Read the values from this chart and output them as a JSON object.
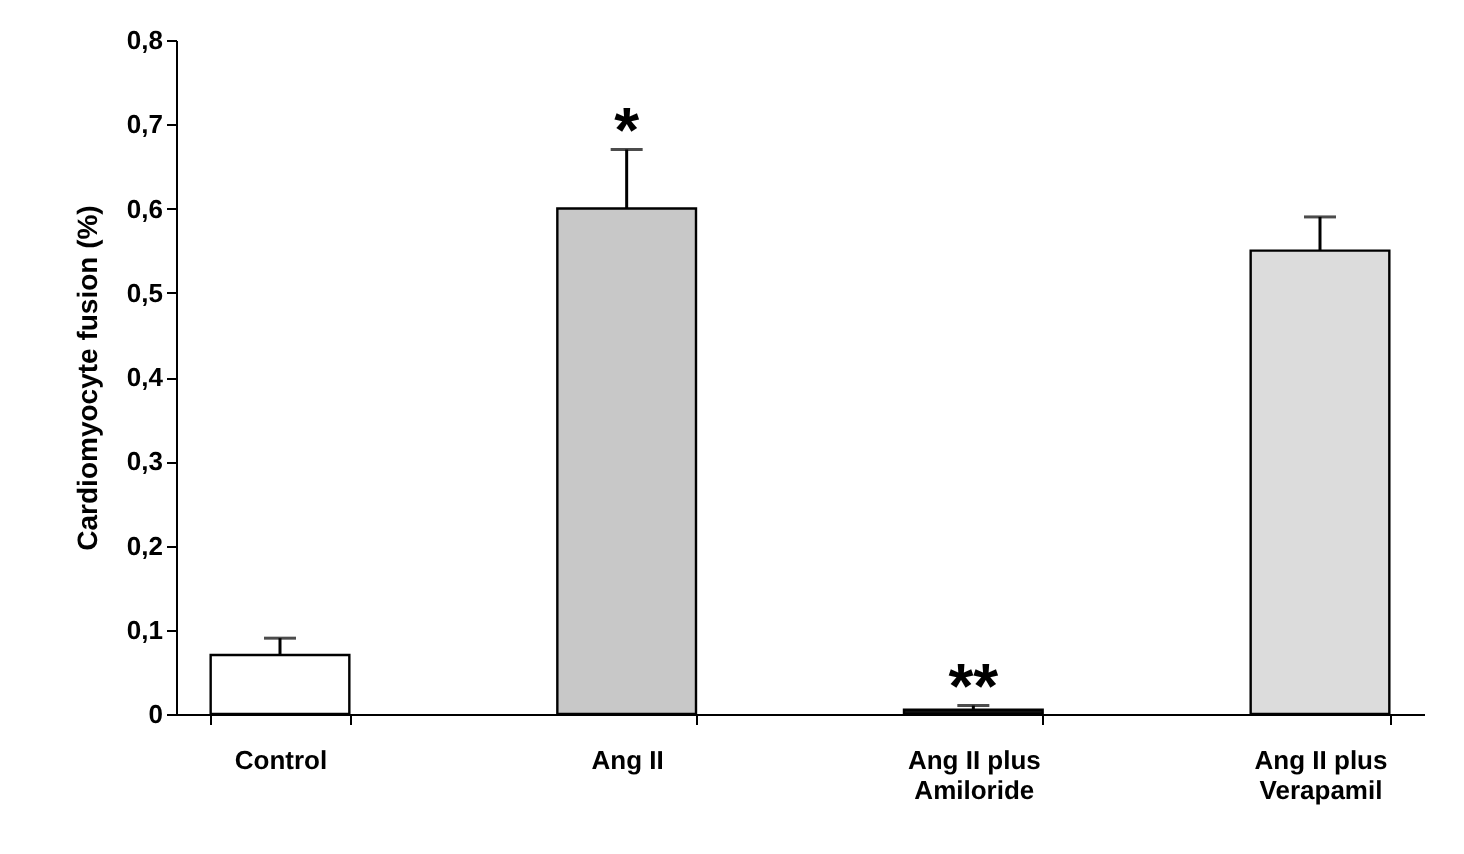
{
  "chart_data": {
    "type": "bar",
    "ylabel": "Cardiomyocyte fusion (%)",
    "categories": [
      "Control",
      "Ang II",
      "Ang II plus\nAmiloride",
      "Ang II plus\nVerapamil"
    ],
    "values": [
      0.07,
      0.6,
      0.005,
      0.55
    ],
    "errors": [
      [
        0.07,
        0.09
      ],
      [
        0.6,
        0.67
      ],
      [
        0.005,
        0.01
      ],
      [
        0.55,
        0.59
      ]
    ],
    "colors": [
      "#ffffff",
      "#c8c8c8",
      "#111111",
      "#dcdcdc"
    ],
    "ylim": [
      0,
      0.8
    ],
    "yticks": [
      0,
      {
        "value": 0.1,
        "label": "0,1"
      },
      {
        "value": 0.2,
        "label": "0,2"
      },
      {
        "value": 0.3,
        "label": "0,3"
      },
      {
        "value": 0.4,
        "label": "0,4"
      },
      {
        "value": 0.5,
        "label": "0,5"
      },
      {
        "value": 0.6,
        "label": "0,6"
      },
      {
        "value": 0.7,
        "label": "0,7"
      },
      {
        "value": 0.8,
        "label": "0,8"
      }
    ],
    "grid": false,
    "annotations": [
      {
        "text": "*",
        "x": "Ang II",
        "y": 0.67
      },
      {
        "text": "**",
        "x": "Ang II plus\nAmiloride",
        "y": 0.01
      }
    ]
  }
}
